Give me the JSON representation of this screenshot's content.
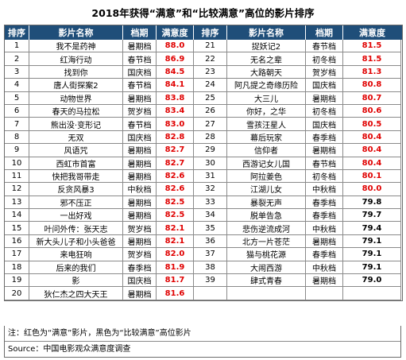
{
  "title": "2018年获得“满意”和“比较满意”高位的影片排序",
  "headers": {
    "rank": "排序",
    "name": "影片名称",
    "period": "档期",
    "score": "满意度"
  },
  "colors": {
    "header_bg": "#1f4e79",
    "satisfied": "#e00000",
    "fairly_satisfied": "#000000"
  },
  "left_rows": [
    {
      "rank": "1",
      "name": "我不是药神",
      "period": "暑期档",
      "score": "88.0",
      "red": true
    },
    {
      "rank": "2",
      "name": "红海行动",
      "period": "春节档",
      "score": "86.9",
      "red": true
    },
    {
      "rank": "3",
      "name": "找到你",
      "period": "国庆档",
      "score": "84.5",
      "red": true
    },
    {
      "rank": "4",
      "name": "唐人街探案2",
      "period": "春节档",
      "score": "84.1",
      "red": true
    },
    {
      "rank": "5",
      "name": "动物世界",
      "period": "暑期档",
      "score": "83.8",
      "red": true
    },
    {
      "rank": "6",
      "name": "春天的马拉松",
      "period": "贺岁档",
      "score": "83.4",
      "red": true
    },
    {
      "rank": "7",
      "name": "熊出没·变形记",
      "period": "春节档",
      "score": "83.0",
      "red": true
    },
    {
      "rank": "8",
      "name": "无双",
      "period": "国庆档",
      "score": "82.8",
      "red": true
    },
    {
      "rank": "9",
      "name": "风语咒",
      "period": "暑期档",
      "score": "82.7",
      "red": true
    },
    {
      "rank": "10",
      "name": "西虹市首富",
      "period": "暑期档",
      "score": "82.7",
      "red": true
    },
    {
      "rank": "11",
      "name": "快把我哥带走",
      "period": "暑期档",
      "score": "82.6",
      "red": true
    },
    {
      "rank": "12",
      "name": "反贪风暴3",
      "period": "中秋档",
      "score": "82.6",
      "red": true
    },
    {
      "rank": "13",
      "name": "邪不压正",
      "period": "暑期档",
      "score": "82.5",
      "red": true
    },
    {
      "rank": "14",
      "name": "一出好戏",
      "period": "暑期档",
      "score": "82.5",
      "red": true
    },
    {
      "rank": "15",
      "name": "叶问外传：张天志",
      "period": "贺岁档",
      "score": "82.1",
      "red": true
    },
    {
      "rank": "16",
      "name": "新大头儿子和小头爸爸",
      "period": "暑期档",
      "score": "82.1",
      "red": true
    },
    {
      "rank": "17",
      "name": "来电狂响",
      "period": "贺岁档",
      "score": "82.0",
      "red": true
    },
    {
      "rank": "18",
      "name": "后来的我们",
      "period": "春季档",
      "score": "81.9",
      "red": true
    },
    {
      "rank": "19",
      "name": "影",
      "period": "国庆档",
      "score": "81.7",
      "red": true
    },
    {
      "rank": "20",
      "name": "狄仁杰之四大天王",
      "period": "暑期档",
      "score": "81.6",
      "red": true
    }
  ],
  "right_rows": [
    {
      "rank": "21",
      "name": "捉妖记2",
      "period": "春节档",
      "score": "81.5",
      "red": true
    },
    {
      "rank": "22",
      "name": "无名之辈",
      "period": "初冬档",
      "score": "81.5",
      "red": true
    },
    {
      "rank": "23",
      "name": "大路朝天",
      "period": "贺岁档",
      "score": "81.3",
      "red": true
    },
    {
      "rank": "24",
      "name": "阿凡提之奇缘历险",
      "period": "国庆档",
      "score": "80.8",
      "red": true
    },
    {
      "rank": "25",
      "name": "大三儿",
      "period": "暑期档",
      "score": "80.7",
      "red": true
    },
    {
      "rank": "26",
      "name": "你好，之华",
      "period": "初冬档",
      "score": "80.6",
      "red": true
    },
    {
      "rank": "27",
      "name": "雪孩汪星人",
      "period": "国庆档",
      "score": "80.5",
      "red": true
    },
    {
      "rank": "28",
      "name": "幕后玩家",
      "period": "春季档",
      "score": "80.4",
      "red": true
    },
    {
      "rank": "29",
      "name": "信仰者",
      "period": "暑期档",
      "score": "80.4",
      "red": true
    },
    {
      "rank": "30",
      "name": "西游记女儿国",
      "period": "春节档",
      "score": "80.4",
      "red": true
    },
    {
      "rank": "31",
      "name": "阿拉姜色",
      "period": "初冬档",
      "score": "80.1",
      "red": true
    },
    {
      "rank": "32",
      "name": "江湖儿女",
      "period": "中秋档",
      "score": "80.0",
      "red": true
    },
    {
      "rank": "33",
      "name": "暴裂无声",
      "period": "春季档",
      "score": "79.8",
      "red": false
    },
    {
      "rank": "34",
      "name": "脱单告急",
      "period": "春季档",
      "score": "79.7",
      "red": false
    },
    {
      "rank": "35",
      "name": "悲伤逆流成河",
      "period": "中秋档",
      "score": "79.4",
      "red": false
    },
    {
      "rank": "36",
      "name": "北方一片苍茫",
      "period": "暑期档",
      "score": "79.1",
      "red": false
    },
    {
      "rank": "37",
      "name": "猫与桃花源",
      "period": "春季档",
      "score": "79.1",
      "red": false
    },
    {
      "rank": "38",
      "name": "大闹西游",
      "period": "中秋档",
      "score": "79.1",
      "red": false
    },
    {
      "rank": "39",
      "name": "肆式青春",
      "period": "暑期档",
      "score": "79.0",
      "red": false
    }
  ],
  "note": "注：红色为“满意”影片，黑色为“比较满意”高位影片",
  "source": "Source：中国电影观众满意度调查"
}
